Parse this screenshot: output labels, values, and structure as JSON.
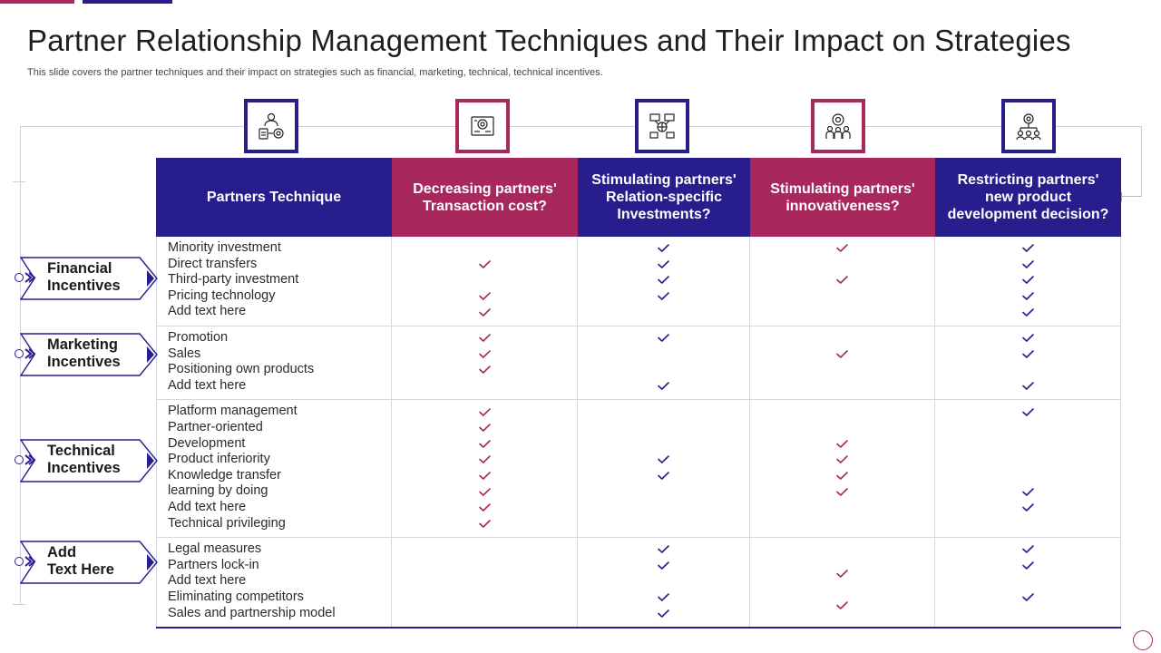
{
  "title": "Partner Relationship Management Techniques and Their Impact on Strategies",
  "subtitle": "This slide covers the partner techniques and their impact on strategies such as financial, marketing, technical, technical incentives.",
  "colors": {
    "navy": "#271d8c",
    "pink": "#a8285e"
  },
  "icons": [
    "partner-techniques-icon",
    "transaction-cost-icon",
    "relation-investment-icon",
    "innovativeness-icon",
    "product-development-icon"
  ],
  "header": {
    "technique": "Partners Technique",
    "col1": "Decreasing partners' Transaction cost?",
    "col2": "Stimulating partners' Relation-specific Investments?",
    "col3": "Stimulating partners' innovativeness?",
    "col4": "Restricting partners' new product development decision?"
  },
  "groups": [
    {
      "label_line1": "Financial",
      "label_line2": "Incentives",
      "items": [
        "Minority investment",
        "Direct transfers",
        "Third-party investment",
        "Pricing technology",
        "Add text here"
      ],
      "checks": [
        [
          1,
          3,
          4
        ],
        [
          0,
          1,
          2,
          3
        ],
        [
          0,
          2
        ],
        [
          0,
          1,
          2,
          3,
          4
        ]
      ]
    },
    {
      "label_line1": "Marketing",
      "label_line2": "Incentives",
      "items": [
        "Promotion",
        "Sales",
        "Positioning own products",
        "Add text here"
      ],
      "checks": [
        [
          0,
          1,
          2
        ],
        [
          0,
          3
        ],
        [
          1
        ],
        [
          0,
          1,
          3
        ]
      ]
    },
    {
      "label_line1": "Technical",
      "label_line2": "Incentives",
      "items": [
        "Platform management",
        "Partner-oriented",
        "Development",
        "Product inferiority",
        "Knowledge transfer",
        "learning by doing",
        "Add text here",
        "Technical privileging"
      ],
      "checks": [
        [
          0,
          1,
          2,
          3,
          4,
          5,
          6,
          7
        ],
        [
          3,
          4
        ],
        [
          2,
          3,
          4,
          5
        ],
        [
          0,
          5,
          6
        ]
      ]
    },
    {
      "label_line1": "Add",
      "label_line2": "Text Here",
      "items": [
        "Legal measures",
        "Partners lock-in",
        "Add text here",
        "Eliminating competitors",
        "Sales and partnership model"
      ],
      "checks": [
        [],
        [
          0,
          1,
          3,
          4
        ],
        [
          1.5,
          3.5
        ],
        [
          0,
          1,
          3
        ]
      ]
    }
  ]
}
